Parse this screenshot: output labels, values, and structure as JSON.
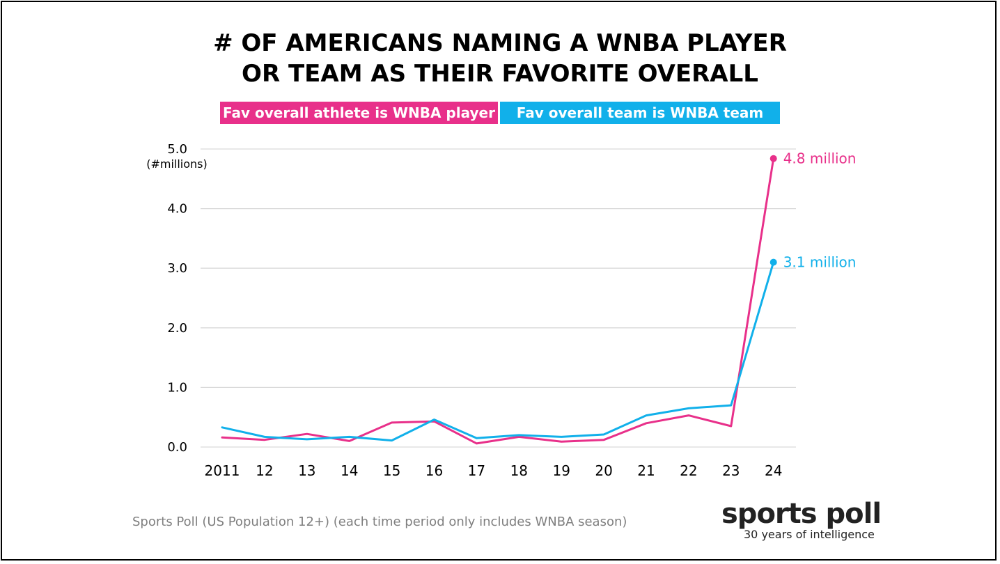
{
  "colors": {
    "player": "#e8308a",
    "team": "#11b0ea",
    "grid": "#d9d9d9",
    "axis_text": "#000000"
  },
  "chart_data": {
    "type": "line",
    "title_lines": [
      "# OF AMERICANS NAMING A WNBA PLAYER",
      "OR TEAM AS THEIR FAVORITE OVERALL"
    ],
    "categories": [
      "2011",
      "12",
      "13",
      "14",
      "15",
      "16",
      "17",
      "18",
      "19",
      "20",
      "21",
      "22",
      "23",
      "24"
    ],
    "series": [
      {
        "name": "Fav overall athlete is WNBA player",
        "key": "player",
        "values": [
          0.16,
          0.12,
          0.22,
          0.1,
          0.41,
          0.43,
          0.06,
          0.17,
          0.09,
          0.12,
          0.4,
          0.53,
          0.35,
          4.84
        ],
        "end_label": "4.8 million"
      },
      {
        "name": "Fav overall team is WNBA team",
        "key": "team",
        "values": [
          0.33,
          0.17,
          0.13,
          0.17,
          0.11,
          0.46,
          0.15,
          0.2,
          0.17,
          0.21,
          0.53,
          0.65,
          0.7,
          3.1
        ],
        "end_label": "3.1 million"
      }
    ],
    "y_ticks": [
      "0.0",
      "1.0",
      "2.0",
      "3.0",
      "4.0",
      "5.0"
    ],
    "ylabel": "(#millions)",
    "ylim": [
      0,
      5
    ],
    "grid": true,
    "legend_position": "top"
  },
  "footer": {
    "source": "Sports Poll (US Population 12+) (each time period only includes WNBA season)",
    "brand_name": "sports poll",
    "brand_tagline": "30 years of intelligence"
  }
}
